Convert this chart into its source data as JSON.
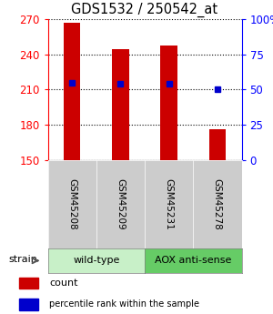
{
  "title": "GDS1532 / 250542_at",
  "samples": [
    "GSM45208",
    "GSM45209",
    "GSM45231",
    "GSM45278"
  ],
  "counts": [
    267,
    244,
    247,
    176
  ],
  "percentiles": [
    55,
    54,
    54,
    50
  ],
  "baseline": 150,
  "ylim_left": [
    150,
    270
  ],
  "ylim_right": [
    0,
    100
  ],
  "yticks_left": [
    150,
    180,
    210,
    240,
    270
  ],
  "yticks_right": [
    0,
    25,
    50,
    75,
    100
  ],
  "group_configs": [
    {
      "indices": [
        0,
        1
      ],
      "label": "wild-type",
      "color": "#c8f0c8"
    },
    {
      "indices": [
        2,
        3
      ],
      "label": "AOX anti-sense",
      "color": "#66cc66"
    }
  ],
  "bar_color": "#cc0000",
  "marker_color": "#0000cc",
  "bar_width": 0.35,
  "sample_box_color": "#cccccc",
  "strain_label": "strain"
}
